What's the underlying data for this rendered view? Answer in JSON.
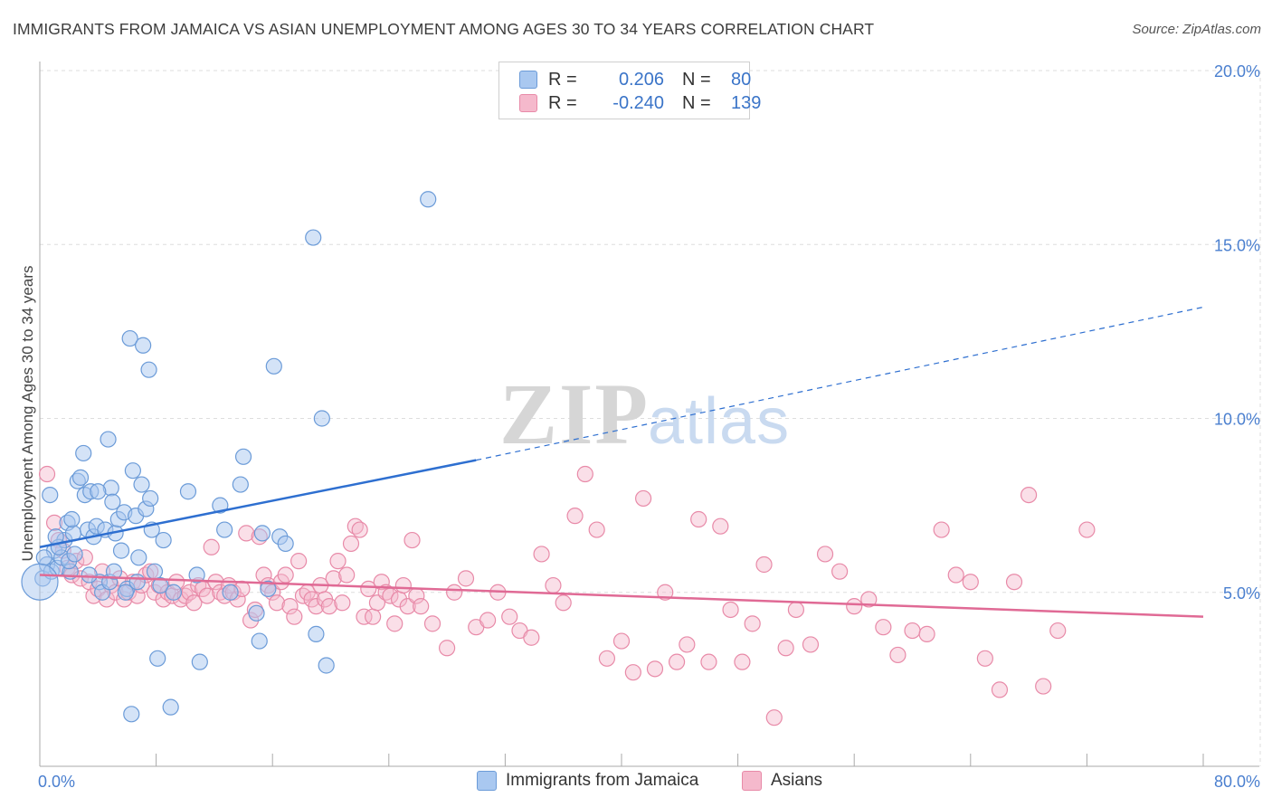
{
  "header": {
    "title": "IMMIGRANTS FROM JAMAICA VS ASIAN UNEMPLOYMENT AMONG AGES 30 TO 34 YEARS CORRELATION CHART",
    "source": "Source: ZipAtlas.com"
  },
  "watermark": {
    "zip": "ZIP",
    "atlas": "atlas"
  },
  "legend": {
    "rows": [
      {
        "r_label": "R =",
        "r_value": "0.206",
        "n_label": "N =",
        "n_value": "80"
      },
      {
        "r_label": "R =",
        "r_value": "-0.240",
        "n_label": "N =",
        "n_value": "139"
      }
    ]
  },
  "colors": {
    "jamaica_fill": "#a9c8f0",
    "jamaica_stroke": "#6b9bd8",
    "jamaica_line": "#2e6fd0",
    "asians_fill": "#f5b9cc",
    "asians_stroke": "#e88aa8",
    "asians_line": "#e06a95",
    "tick_label": "#4a7fcf",
    "grid": "#dddddd"
  },
  "chart_data": {
    "type": "scatter",
    "title": "IMMIGRANTS FROM JAMAICA VS ASIAN UNEMPLOYMENT AMONG AGES 30 TO 34 YEARS CORRELATION CHART",
    "xlabel": "",
    "ylabel": "Unemployment Among Ages 30 to 34 years",
    "xlim": [
      0,
      80
    ],
    "ylim": [
      0,
      20
    ],
    "x_tick_labels": [
      "0.0%",
      "80.0%"
    ],
    "y_ticks": [
      5,
      10,
      15,
      20
    ],
    "y_tick_labels": [
      "5.0%",
      "10.0%",
      "15.0%",
      "20.0%"
    ],
    "grid": true,
    "legend_position": "top-center",
    "series": [
      {
        "name": "Immigrants from Jamaica",
        "r": 0.206,
        "n": 80,
        "trend": {
          "x": [
            0,
            30
          ],
          "y": [
            6.3,
            8.8
          ],
          "dashed_extension_to": [
            80,
            13.2
          ]
        },
        "points": [
          [
            0.2,
            5.4
          ],
          [
            0.5,
            5.8
          ],
          [
            0.8,
            5.6
          ],
          [
            1.0,
            6.2
          ],
          [
            1.2,
            5.7
          ],
          [
            1.5,
            6.0
          ],
          [
            1.7,
            6.5
          ],
          [
            1.9,
            7.0
          ],
          [
            2.1,
            5.6
          ],
          [
            2.3,
            6.7
          ],
          [
            2.6,
            8.2
          ],
          [
            2.8,
            8.3
          ],
          [
            3.0,
            9.0
          ],
          [
            3.1,
            7.8
          ],
          [
            3.3,
            6.8
          ],
          [
            3.5,
            7.9
          ],
          [
            3.7,
            6.6
          ],
          [
            3.9,
            6.9
          ],
          [
            4.1,
            5.3
          ],
          [
            4.3,
            5.0
          ],
          [
            4.5,
            6.8
          ],
          [
            4.7,
            9.4
          ],
          [
            4.9,
            8.0
          ],
          [
            5.0,
            7.6
          ],
          [
            5.2,
            6.7
          ],
          [
            5.4,
            7.1
          ],
          [
            5.6,
            6.2
          ],
          [
            5.8,
            7.3
          ],
          [
            6.0,
            5.1
          ],
          [
            6.2,
            12.3
          ],
          [
            6.4,
            8.5
          ],
          [
            6.6,
            7.2
          ],
          [
            6.8,
            6.0
          ],
          [
            7.0,
            8.1
          ],
          [
            7.1,
            12.1
          ],
          [
            7.3,
            7.4
          ],
          [
            7.5,
            11.4
          ],
          [
            7.7,
            6.8
          ],
          [
            7.9,
            5.6
          ],
          [
            8.1,
            3.1
          ],
          [
            8.5,
            6.5
          ],
          [
            9.0,
            1.7
          ],
          [
            10.2,
            7.9
          ],
          [
            10.8,
            5.5
          ],
          [
            11.0,
            3.0
          ],
          [
            12.4,
            7.5
          ],
          [
            12.7,
            6.8
          ],
          [
            13.1,
            5.0
          ],
          [
            13.8,
            8.1
          ],
          [
            14.0,
            8.9
          ],
          [
            14.9,
            4.4
          ],
          [
            15.1,
            3.6
          ],
          [
            15.3,
            6.7
          ],
          [
            15.7,
            5.1
          ],
          [
            16.1,
            11.5
          ],
          [
            16.5,
            6.6
          ],
          [
            16.9,
            6.4
          ],
          [
            18.8,
            15.2
          ],
          [
            19.0,
            3.8
          ],
          [
            19.4,
            10.0
          ],
          [
            19.7,
            2.9
          ],
          [
            26.7,
            16.3
          ],
          [
            0.7,
            7.8
          ],
          [
            1.3,
            6.3
          ],
          [
            2.0,
            5.9
          ],
          [
            2.4,
            6.1
          ],
          [
            3.4,
            5.5
          ],
          [
            4.0,
            7.9
          ],
          [
            4.8,
            5.3
          ],
          [
            5.1,
            5.6
          ],
          [
            5.9,
            5.0
          ],
          [
            6.3,
            1.5
          ],
          [
            6.7,
            5.3
          ],
          [
            7.6,
            7.7
          ],
          [
            8.3,
            5.2
          ],
          [
            9.2,
            5.0
          ],
          [
            0.3,
            6.0
          ],
          [
            1.1,
            6.6
          ],
          [
            2.2,
            7.1
          ],
          [
            0.0,
            5.3
          ]
        ]
      },
      {
        "name": "Asians",
        "r": -0.24,
        "n": 139,
        "trend": {
          "x": [
            0,
            80
          ],
          "y": [
            5.5,
            4.3
          ]
        },
        "points": [
          [
            0.5,
            8.4
          ],
          [
            1.0,
            7.0
          ],
          [
            1.3,
            6.5
          ],
          [
            1.6,
            6.2
          ],
          [
            1.9,
            5.7
          ],
          [
            2.2,
            5.5
          ],
          [
            2.5,
            5.9
          ],
          [
            2.8,
            5.4
          ],
          [
            3.1,
            6.0
          ],
          [
            3.4,
            5.3
          ],
          [
            3.7,
            4.9
          ],
          [
            4.0,
            5.1
          ],
          [
            4.3,
            5.6
          ],
          [
            4.6,
            4.8
          ],
          [
            4.9,
            5.2
          ],
          [
            5.2,
            5.0
          ],
          [
            5.5,
            5.4
          ],
          [
            5.8,
            4.8
          ],
          [
            6.1,
            5.0
          ],
          [
            6.4,
            5.3
          ],
          [
            6.7,
            4.9
          ],
          [
            7.0,
            5.2
          ],
          [
            7.3,
            5.5
          ],
          [
            7.6,
            5.6
          ],
          [
            7.9,
            5.0
          ],
          [
            8.2,
            5.2
          ],
          [
            8.5,
            4.8
          ],
          [
            8.8,
            5.0
          ],
          [
            9.1,
            4.9
          ],
          [
            9.4,
            5.3
          ],
          [
            9.7,
            4.8
          ],
          [
            10.0,
            4.9
          ],
          [
            10.3,
            5.0
          ],
          [
            10.6,
            4.7
          ],
          [
            10.9,
            5.2
          ],
          [
            11.2,
            5.1
          ],
          [
            11.5,
            4.9
          ],
          [
            11.8,
            6.3
          ],
          [
            12.1,
            5.3
          ],
          [
            12.4,
            5.0
          ],
          [
            12.7,
            4.9
          ],
          [
            13.0,
            5.2
          ],
          [
            13.3,
            5.0
          ],
          [
            13.6,
            4.8
          ],
          [
            13.9,
            5.1
          ],
          [
            14.2,
            6.7
          ],
          [
            14.5,
            4.2
          ],
          [
            14.8,
            4.5
          ],
          [
            15.1,
            6.6
          ],
          [
            15.4,
            5.5
          ],
          [
            15.7,
            5.2
          ],
          [
            16.0,
            5.0
          ],
          [
            16.3,
            4.7
          ],
          [
            16.6,
            5.3
          ],
          [
            16.9,
            5.5
          ],
          [
            17.2,
            4.6
          ],
          [
            17.5,
            4.3
          ],
          [
            17.8,
            5.9
          ],
          [
            18.1,
            4.9
          ],
          [
            18.4,
            5.0
          ],
          [
            18.7,
            4.8
          ],
          [
            19.0,
            4.6
          ],
          [
            19.3,
            5.2
          ],
          [
            19.6,
            4.8
          ],
          [
            19.9,
            4.6
          ],
          [
            20.2,
            5.4
          ],
          [
            20.5,
            5.9
          ],
          [
            20.8,
            4.7
          ],
          [
            21.1,
            5.5
          ],
          [
            21.4,
            6.4
          ],
          [
            21.7,
            6.9
          ],
          [
            22.0,
            6.8
          ],
          [
            22.3,
            4.3
          ],
          [
            22.6,
            5.1
          ],
          [
            22.9,
            4.3
          ],
          [
            23.2,
            4.7
          ],
          [
            23.5,
            5.3
          ],
          [
            23.8,
            5.0
          ],
          [
            24.1,
            4.9
          ],
          [
            24.4,
            4.1
          ],
          [
            24.7,
            4.8
          ],
          [
            25.0,
            5.2
          ],
          [
            25.3,
            4.6
          ],
          [
            25.6,
            6.5
          ],
          [
            25.9,
            4.9
          ],
          [
            26.2,
            4.6
          ],
          [
            27.0,
            4.1
          ],
          [
            28.0,
            3.4
          ],
          [
            28.5,
            5.0
          ],
          [
            29.3,
            5.4
          ],
          [
            30.0,
            4.0
          ],
          [
            30.8,
            4.2
          ],
          [
            31.5,
            5.0
          ],
          [
            32.3,
            4.3
          ],
          [
            33.0,
            3.9
          ],
          [
            33.8,
            3.7
          ],
          [
            34.5,
            6.1
          ],
          [
            35.3,
            5.2
          ],
          [
            36.0,
            4.7
          ],
          [
            36.8,
            7.2
          ],
          [
            37.5,
            8.4
          ],
          [
            38.3,
            6.8
          ],
          [
            39.0,
            3.1
          ],
          [
            40.0,
            3.6
          ],
          [
            40.8,
            2.7
          ],
          [
            41.5,
            7.7
          ],
          [
            42.3,
            2.8
          ],
          [
            43.0,
            5.0
          ],
          [
            43.8,
            3.0
          ],
          [
            44.5,
            3.5
          ],
          [
            45.3,
            7.1
          ],
          [
            46.0,
            3.0
          ],
          [
            46.8,
            6.9
          ],
          [
            47.5,
            4.5
          ],
          [
            48.3,
            3.0
          ],
          [
            49.0,
            4.1
          ],
          [
            49.8,
            5.8
          ],
          [
            50.5,
            1.4
          ],
          [
            51.3,
            3.4
          ],
          [
            52.0,
            4.5
          ],
          [
            53.0,
            3.5
          ],
          [
            54.0,
            6.1
          ],
          [
            55.0,
            5.6
          ],
          [
            56.0,
            4.6
          ],
          [
            57.0,
            4.8
          ],
          [
            58.0,
            4.0
          ],
          [
            59.0,
            3.2
          ],
          [
            60.0,
            3.9
          ],
          [
            61.0,
            3.8
          ],
          [
            62.0,
            6.8
          ],
          [
            63.0,
            5.5
          ],
          [
            64.0,
            5.3
          ],
          [
            65.0,
            3.1
          ],
          [
            66.0,
            2.2
          ],
          [
            67.0,
            5.3
          ],
          [
            68.0,
            7.8
          ],
          [
            69.0,
            2.3
          ],
          [
            70.0,
            3.9
          ],
          [
            72.0,
            6.8
          ]
        ]
      }
    ]
  },
  "bottom_legend": {
    "jamaica": "Immigrants from Jamaica",
    "asians": "Asians"
  }
}
